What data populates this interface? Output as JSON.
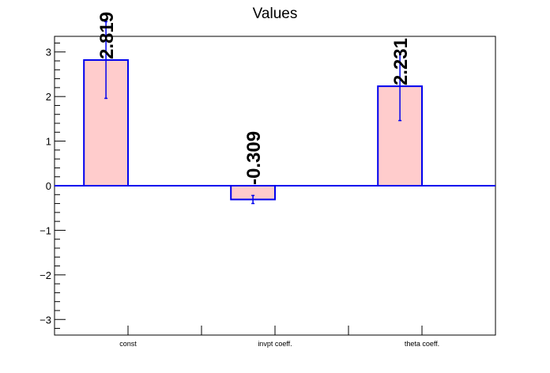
{
  "chart_data": {
    "type": "bar",
    "title": "Values",
    "categories": [
      "const",
      "invpt coeff.",
      "theta coeff."
    ],
    "values": [
      2.819,
      -0.309,
      2.231
    ],
    "errors": [
      0.86,
      0.09,
      0.77
    ],
    "value_labels": [
      "2.819",
      "-0.309",
      "2.231"
    ],
    "yticks": [
      -3,
      -2,
      -1,
      0,
      1,
      2,
      3
    ],
    "ylim": [
      -3.35,
      3.35
    ],
    "grid": false,
    "colors": {
      "bar_fill": "#ffcccc",
      "bar_edge": "#0000ee",
      "axis": "#000000"
    }
  }
}
